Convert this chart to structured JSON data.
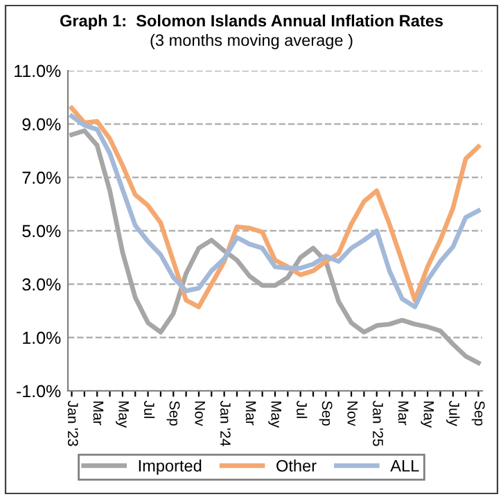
{
  "chart_data": {
    "type": "line",
    "title": "Graph 1:  Solomon Islands Annual Inflation Rates",
    "subtitle": "(3 months moving average )",
    "categories": [
      "Jan '23",
      null,
      "Mar",
      null,
      "May",
      null,
      "Jul",
      null,
      "Sep",
      null,
      "Nov",
      null,
      "Jan '24",
      null,
      "Mar",
      null,
      "May",
      null,
      "Jul",
      null,
      "Sep",
      null,
      "Nov",
      null,
      "Jan '25",
      null,
      "Mar",
      null,
      "May",
      null,
      "July",
      null,
      "Sep"
    ],
    "series": [
      {
        "name": "Imported",
        "color": "#a6a6a6",
        "values": [
          8.6,
          8.75,
          8.2,
          6.5,
          4.2,
          2.5,
          1.55,
          1.2,
          1.9,
          3.4,
          4.35,
          4.65,
          4.25,
          3.9,
          3.3,
          2.95,
          2.95,
          3.25,
          4.0,
          4.35,
          3.85,
          2.35,
          1.55,
          1.2,
          1.45,
          1.5,
          1.65,
          1.5,
          1.4,
          1.25,
          0.75,
          0.3,
          0.05
        ]
      },
      {
        "name": "Other",
        "color": "#f4a870",
        "values": [
          9.6,
          9.05,
          9.1,
          8.45,
          7.45,
          6.35,
          5.95,
          5.3,
          3.85,
          2.4,
          2.15,
          3.0,
          3.85,
          5.15,
          5.1,
          4.95,
          3.9,
          3.65,
          3.35,
          3.5,
          3.85,
          4.15,
          5.25,
          6.1,
          6.5,
          5.25,
          3.85,
          2.4,
          3.65,
          4.65,
          5.85,
          7.7,
          8.15
        ]
      },
      {
        "name": "ALL",
        "color": "#a3b9d9",
        "values": [
          9.3,
          8.95,
          8.8,
          7.9,
          6.55,
          5.2,
          4.6,
          4.1,
          3.25,
          2.75,
          2.85,
          3.5,
          3.95,
          4.75,
          4.5,
          4.35,
          3.65,
          3.6,
          3.6,
          3.75,
          4.05,
          3.85,
          4.35,
          4.65,
          5.0,
          3.5,
          2.45,
          2.15,
          3.15,
          3.85,
          4.4,
          5.5,
          5.75
        ]
      }
    ],
    "ylim": [
      -1,
      11
    ],
    "yticks": [
      {
        "value": -1,
        "label": "-1.0%"
      },
      {
        "value": 1,
        "label": "1.0%"
      },
      {
        "value": 3,
        "label": "3.0%"
      },
      {
        "value": 5,
        "label": "5.0%"
      },
      {
        "value": 7,
        "label": "7.0%"
      },
      {
        "value": 9,
        "label": "9.0%"
      },
      {
        "value": 11,
        "label": "11.0%"
      }
    ],
    "grid": "y",
    "legend": "bottom",
    "line_style": "solid",
    "marker": "none"
  }
}
